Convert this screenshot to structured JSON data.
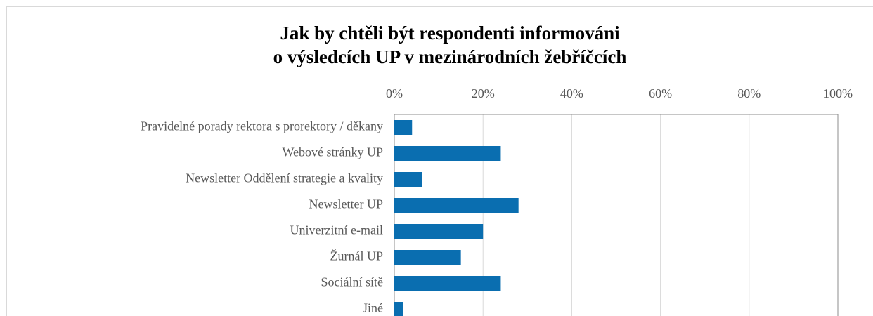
{
  "chart_data": {
    "type": "bar",
    "orientation": "horizontal",
    "title": [
      "Jak by chtěli být respondenti informováni",
      "o výsledcích UP v mezinárodních žebříčcích"
    ],
    "categories": [
      "Pravidelné porady rektora s prorektory / děkany",
      "Webové stránky UP",
      "Newsletter Oddělení strategie a kvality",
      "Newsletter UP",
      "Univerzitní e-mail",
      "Žurnál UP",
      "Sociální sítě",
      "Jiné"
    ],
    "values": [
      4,
      24,
      6.3,
      28,
      20,
      15,
      24,
      2
    ],
    "color": "#0a6eb0",
    "xlim": [
      0,
      100
    ],
    "xticks": [
      {
        "value": 0,
        "label": "0%"
      },
      {
        "value": 20,
        "label": "20%"
      },
      {
        "value": 40,
        "label": "40%"
      },
      {
        "value": 60,
        "label": "60%"
      },
      {
        "value": 80,
        "label": "80%"
      },
      {
        "value": 100,
        "label": "100%"
      }
    ],
    "grid": true
  }
}
